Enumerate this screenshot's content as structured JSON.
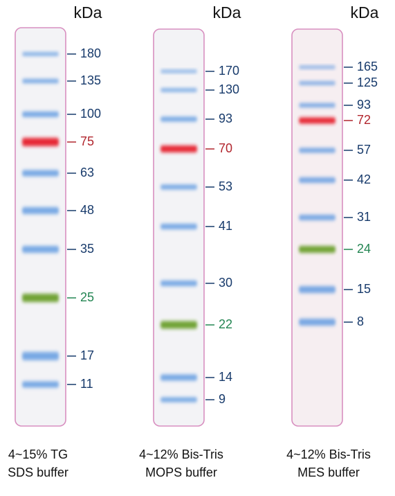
{
  "lanes": [
    {
      "unit": "kDa",
      "caption": [
        "4~15% TG",
        "SDS buffer"
      ],
      "bands": [
        {
          "label": "180",
          "color": "blue"
        },
        {
          "label": "135",
          "color": "blue"
        },
        {
          "label": "100",
          "color": "blue"
        },
        {
          "label": "75",
          "color": "red"
        },
        {
          "label": "63",
          "color": "blue"
        },
        {
          "label": "48",
          "color": "blue"
        },
        {
          "label": "35",
          "color": "blue"
        },
        {
          "label": "25",
          "color": "green"
        },
        {
          "label": "17",
          "color": "blue"
        },
        {
          "label": "11",
          "color": "blue"
        }
      ]
    },
    {
      "unit": "kDa",
      "caption": [
        "4~12% Bis-Tris",
        "MOPS buffer"
      ],
      "bands": [
        {
          "label": "170",
          "color": "blue"
        },
        {
          "label": "130",
          "color": "blue"
        },
        {
          "label": "93",
          "color": "blue"
        },
        {
          "label": "70",
          "color": "red"
        },
        {
          "label": "53",
          "color": "blue"
        },
        {
          "label": "41",
          "color": "blue"
        },
        {
          "label": "30",
          "color": "blue"
        },
        {
          "label": "22",
          "color": "green"
        },
        {
          "label": "14",
          "color": "blue"
        },
        {
          "label": "9",
          "color": "blue"
        }
      ]
    },
    {
      "unit": "kDa",
      "caption": [
        "4~12% Bis-Tris",
        "MES buffer"
      ],
      "bands": [
        {
          "label": "165",
          "color": "blue"
        },
        {
          "label": "125",
          "color": "blue"
        },
        {
          "label": "93",
          "color": "blue"
        },
        {
          "label": "72",
          "color": "red"
        },
        {
          "label": "57",
          "color": "blue"
        },
        {
          "label": "42",
          "color": "blue"
        },
        {
          "label": "31",
          "color": "blue"
        },
        {
          "label": "24",
          "color": "green"
        },
        {
          "label": "15",
          "color": "blue"
        },
        {
          "label": "8",
          "color": "blue"
        }
      ]
    }
  ]
}
